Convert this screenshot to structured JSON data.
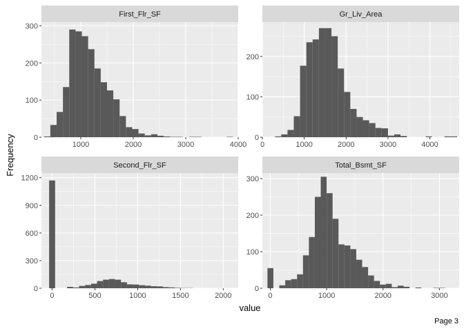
{
  "chart_data": {
    "type": "histogram-facets",
    "xlabel": "value",
    "ylabel": "Frequency",
    "colors": {
      "panel_bg": "#ebebeb",
      "strip_bg": "#d9d9d9",
      "bar": "#595959",
      "grid": "#ffffff"
    },
    "facets": [
      {
        "name": "First_Flr_SF",
        "xlim": [
          250,
          4000
        ],
        "ylim": [
          0,
          310
        ],
        "xticks": [
          1000,
          2000,
          3000,
          4000
        ],
        "yticks": [
          0,
          100,
          200,
          300
        ],
        "bins": [
          [
            300,
            420,
            2
          ],
          [
            420,
            540,
            33
          ],
          [
            540,
            660,
            68
          ],
          [
            660,
            780,
            135
          ],
          [
            780,
            900,
            290
          ],
          [
            900,
            1020,
            285
          ],
          [
            1020,
            1140,
            272
          ],
          [
            1140,
            1260,
            237
          ],
          [
            1260,
            1380,
            185
          ],
          [
            1380,
            1500,
            148
          ],
          [
            1500,
            1620,
            126
          ],
          [
            1620,
            1740,
            102
          ],
          [
            1740,
            1860,
            57
          ],
          [
            1860,
            1980,
            27
          ],
          [
            1980,
            2100,
            22
          ],
          [
            2100,
            2220,
            10
          ],
          [
            2220,
            2340,
            5
          ],
          [
            2340,
            2460,
            8
          ],
          [
            2460,
            2580,
            4
          ],
          [
            2580,
            2700,
            2
          ],
          [
            2700,
            2820,
            1
          ],
          [
            2820,
            2940,
            1
          ],
          [
            3060,
            3180,
            1
          ],
          [
            3180,
            3300,
            1
          ],
          [
            3780,
            3900,
            1
          ]
        ]
      },
      {
        "name": "Gr_Liv_Area",
        "xlim": [
          0,
          4700
        ],
        "ylim": [
          0,
          285
        ],
        "xticks": [
          0,
          1000,
          2000,
          3000,
          4000
        ],
        "yticks": [
          0,
          100,
          200
        ],
        "bins": [
          [
            300,
            450,
            2
          ],
          [
            450,
            600,
            7
          ],
          [
            600,
            750,
            18
          ],
          [
            750,
            900,
            52
          ],
          [
            900,
            1050,
            177
          ],
          [
            1050,
            1200,
            235
          ],
          [
            1200,
            1350,
            242
          ],
          [
            1350,
            1500,
            270
          ],
          [
            1500,
            1650,
            270
          ],
          [
            1650,
            1800,
            250
          ],
          [
            1800,
            1950,
            170
          ],
          [
            1950,
            2100,
            112
          ],
          [
            2100,
            2250,
            70
          ],
          [
            2250,
            2400,
            50
          ],
          [
            2400,
            2550,
            42
          ],
          [
            2550,
            2700,
            35
          ],
          [
            2700,
            2850,
            23
          ],
          [
            2850,
            3000,
            22
          ],
          [
            3000,
            3150,
            4
          ],
          [
            3150,
            3300,
            7
          ],
          [
            3300,
            3450,
            3
          ],
          [
            3900,
            4050,
            2
          ],
          [
            4350,
            4500,
            2
          ],
          [
            4500,
            4650,
            2
          ]
        ]
      },
      {
        "name": "Second_Flr_SF",
        "xlim": [
          -125,
          2175
        ],
        "ylim": [
          0,
          1250
        ],
        "xticks": [
          0,
          500,
          1000,
          1500,
          2000
        ],
        "yticks": [
          0,
          300,
          600,
          900,
          1200
        ],
        "bins": [
          [
            -35,
            35,
            1170
          ],
          [
            175,
            245,
            15
          ],
          [
            245,
            315,
            8
          ],
          [
            315,
            385,
            25
          ],
          [
            385,
            455,
            35
          ],
          [
            455,
            525,
            50
          ],
          [
            525,
            595,
            78
          ],
          [
            595,
            665,
            93
          ],
          [
            665,
            735,
            100
          ],
          [
            735,
            805,
            93
          ],
          [
            805,
            875,
            65
          ],
          [
            875,
            945,
            42
          ],
          [
            945,
            1015,
            40
          ],
          [
            1015,
            1085,
            33
          ],
          [
            1085,
            1155,
            28
          ],
          [
            1155,
            1225,
            22
          ],
          [
            1225,
            1295,
            20
          ],
          [
            1295,
            1365,
            12
          ],
          [
            1365,
            1435,
            9
          ],
          [
            1435,
            1505,
            4
          ],
          [
            1505,
            1575,
            2
          ],
          [
            1575,
            1645,
            2
          ]
        ]
      },
      {
        "name": "Total_Bsmt_SF",
        "xlim": [
          -140,
          3350
        ],
        "ylim": [
          0,
          315
        ],
        "xticks": [
          0,
          1000,
          2000,
          3000
        ],
        "yticks": [
          0,
          100,
          200,
          300
        ],
        "bins": [
          [
            -50,
            55,
            55
          ],
          [
            160,
            265,
            8
          ],
          [
            265,
            370,
            22
          ],
          [
            370,
            475,
            25
          ],
          [
            475,
            580,
            38
          ],
          [
            580,
            685,
            90
          ],
          [
            685,
            790,
            140
          ],
          [
            790,
            895,
            250
          ],
          [
            895,
            1000,
            305
          ],
          [
            1000,
            1105,
            260
          ],
          [
            1105,
            1210,
            190
          ],
          [
            1210,
            1315,
            120
          ],
          [
            1315,
            1420,
            117
          ],
          [
            1420,
            1525,
            107
          ],
          [
            1525,
            1630,
            78
          ],
          [
            1630,
            1735,
            58
          ],
          [
            1735,
            1840,
            35
          ],
          [
            1840,
            1945,
            20
          ],
          [
            1945,
            2050,
            10
          ],
          [
            2050,
            2155,
            12
          ],
          [
            2155,
            2260,
            3
          ],
          [
            2260,
            2365,
            7
          ],
          [
            2365,
            2470,
            4
          ],
          [
            2575,
            2680,
            2
          ],
          [
            2890,
            2995,
            1
          ],
          [
            2995,
            3100,
            1
          ]
        ]
      }
    ]
  },
  "footer": {
    "page_label": "Page 3"
  }
}
